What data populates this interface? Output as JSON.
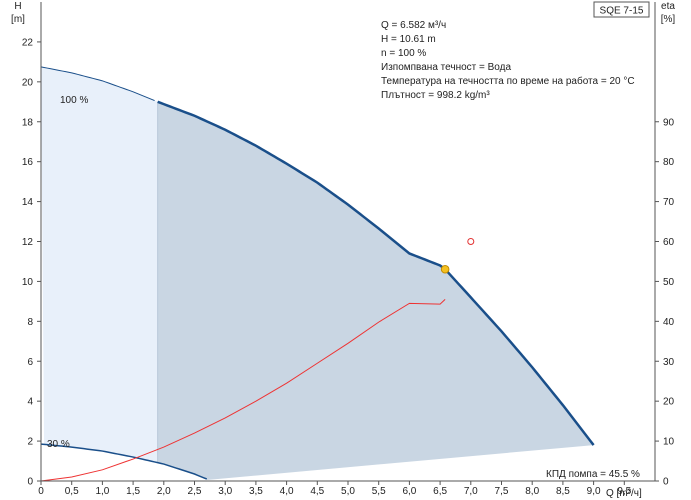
{
  "chart_data": {
    "type": "line",
    "title_box": "SQE 7-15",
    "y_left_label": [
      "H",
      "[m]"
    ],
    "y_right_label": [
      "eta",
      "[%]"
    ],
    "x_label": "Q [m³/ч]",
    "xlim": [
      0,
      10
    ],
    "ylim_left": [
      0,
      24
    ],
    "ylim_right": [
      0,
      100
    ],
    "x_ticks": [
      "0",
      "0,5",
      "1,0",
      "1,5",
      "2,0",
      "2,5",
      "3,0",
      "3,5",
      "4,0",
      "4,5",
      "5,0",
      "5,5",
      "6,0",
      "6,5",
      "7,0",
      "7,5",
      "8,0",
      "8,5",
      "9,0",
      "9,5"
    ],
    "x_tick_values": [
      0,
      0.5,
      1,
      1.5,
      2,
      2.5,
      3,
      3.5,
      4,
      4.5,
      5,
      5.5,
      6,
      6.5,
      7,
      7.5,
      8,
      8.5,
      9,
      9.5
    ],
    "y_left_ticks": [
      0,
      2,
      4,
      6,
      8,
      10,
      12,
      14,
      16,
      18,
      20,
      22
    ],
    "y_right_ticks": [
      0,
      10,
      20,
      30,
      40,
      50,
      60,
      70,
      80,
      90
    ],
    "info_lines": [
      "Q = 6.582 м³/ч",
      "H = 10.61 m",
      "n = 100 %",
      "Изпомпвана течност = Вода",
      "Температура на течността по време на работа = 20 °C",
      "Плътност = 998.2 kg/m³"
    ],
    "efficiency_label": "КПД помпа = 45.5 %",
    "series": [
      {
        "name": "100 %",
        "axis": "left",
        "color": "#1a4f8a",
        "x": [
          0,
          0.5,
          1,
          1.5,
          1.9,
          2.5,
          3,
          3.5,
          4,
          4.5,
          5,
          5.5,
          6,
          6.5,
          6.582,
          7,
          7.5,
          8,
          8.5,
          9
        ],
        "y": [
          20.75,
          20.45,
          20.05,
          19.5,
          19.0,
          18.3,
          17.6,
          16.8,
          15.9,
          14.95,
          13.85,
          12.65,
          11.4,
          10.8,
          10.61,
          9.2,
          7.5,
          5.7,
          3.8,
          1.8
        ]
      },
      {
        "name": "30 %",
        "axis": "left",
        "color": "#1a4f8a",
        "x": [
          0,
          0.5,
          1,
          1.5,
          2,
          2.5,
          2.7
        ],
        "y": [
          1.85,
          1.7,
          1.5,
          1.2,
          0.85,
          0.35,
          0.1
        ]
      },
      {
        "name": "eta",
        "axis": "right",
        "color": "#ee3333",
        "x": [
          0,
          0.5,
          1,
          1.5,
          2,
          2.5,
          3,
          3.5,
          4,
          4.5,
          5,
          5.5,
          6,
          6.5,
          6.582
        ],
        "y": [
          0,
          1.0,
          2.8,
          5.5,
          8.5,
          12.0,
          15.8,
          20.0,
          24.5,
          29.5,
          34.5,
          39.8,
          44.5,
          44.3,
          45.5
        ]
      }
    ],
    "operating_point": {
      "x": 6.582,
      "y": 10.61,
      "color": "#f4c020"
    },
    "efficiency_marker": {
      "x": 7.0,
      "y_right": 60,
      "color": "#e33333"
    },
    "colors": {
      "curve": "#1a4f8a",
      "eta": "#ee3333",
      "region_light": "#e8f0fa",
      "region_dark": "#c9d6e3",
      "axis": "#555555"
    }
  }
}
